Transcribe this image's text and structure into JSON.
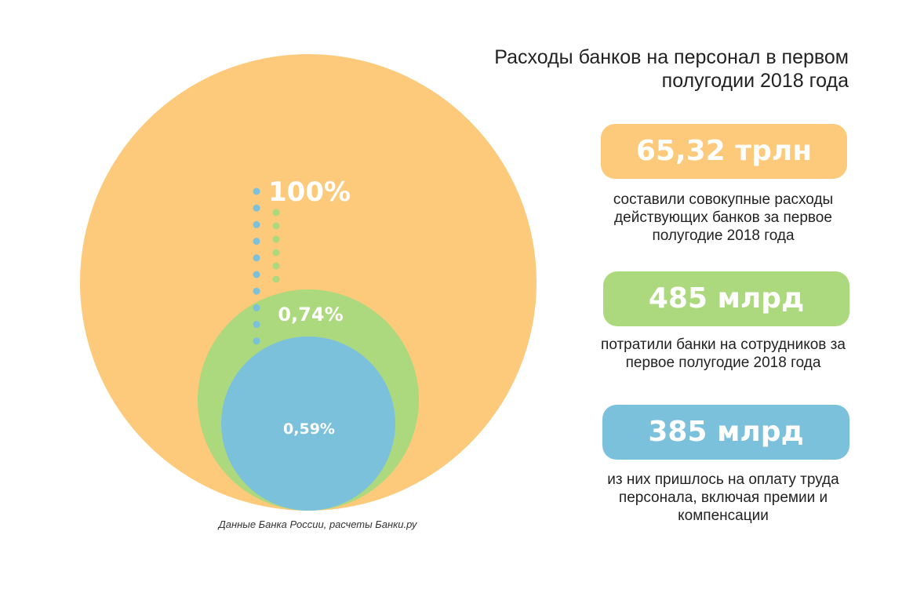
{
  "title_lines": [
    "Расходы банков на персонал в первом",
    "полугодии 2018 года"
  ],
  "colors": {
    "orange": "#fdc97a",
    "green": "#acd97d",
    "blue": "#7cc1dc",
    "text": "#222222"
  },
  "chart_data": {
    "type": "nested-bubble",
    "series": [
      {
        "label": "100%",
        "share": 100,
        "color": "#fdc97a"
      },
      {
        "label": "0,74%",
        "share": 0.74,
        "color": "#acd97d"
      },
      {
        "label": "0,59%",
        "share": 0.59,
        "color": "#7cc1dc"
      }
    ]
  },
  "stats": [
    {
      "value": "65,32 трлн",
      "description_lines": [
        "составили совокупные расходы",
        "действующих банков за первое",
        "полугодие 2018 года"
      ]
    },
    {
      "value": "485 млрд",
      "description_lines": [
        "потратили банки на сотрудников за",
        "первое полугодие 2018 года"
      ]
    },
    {
      "value": "385 млрд",
      "description_lines": [
        "из них пришлось на оплату труда",
        "персонала, включая премии и",
        "компенсации"
      ]
    }
  ],
  "source": "Данные Банка России, расчеты Банки.ру"
}
